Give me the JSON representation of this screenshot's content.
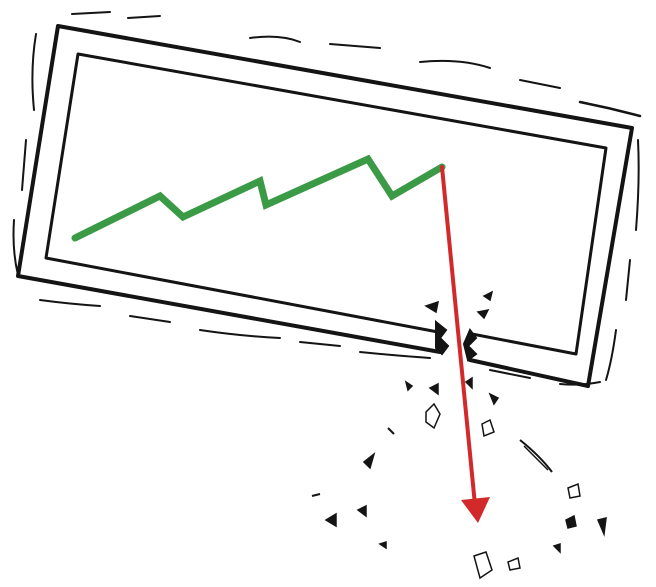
{
  "illustration": {
    "kind": "sketched chart frame broken by crashing arrow",
    "colors": {
      "ink": "#141414",
      "growth_line": "#3a9a45",
      "crash_arrow": "#d2292b",
      "background": "#ffffff"
    },
    "trend_before_crash": "rising",
    "trend_after_crash": "falling"
  }
}
